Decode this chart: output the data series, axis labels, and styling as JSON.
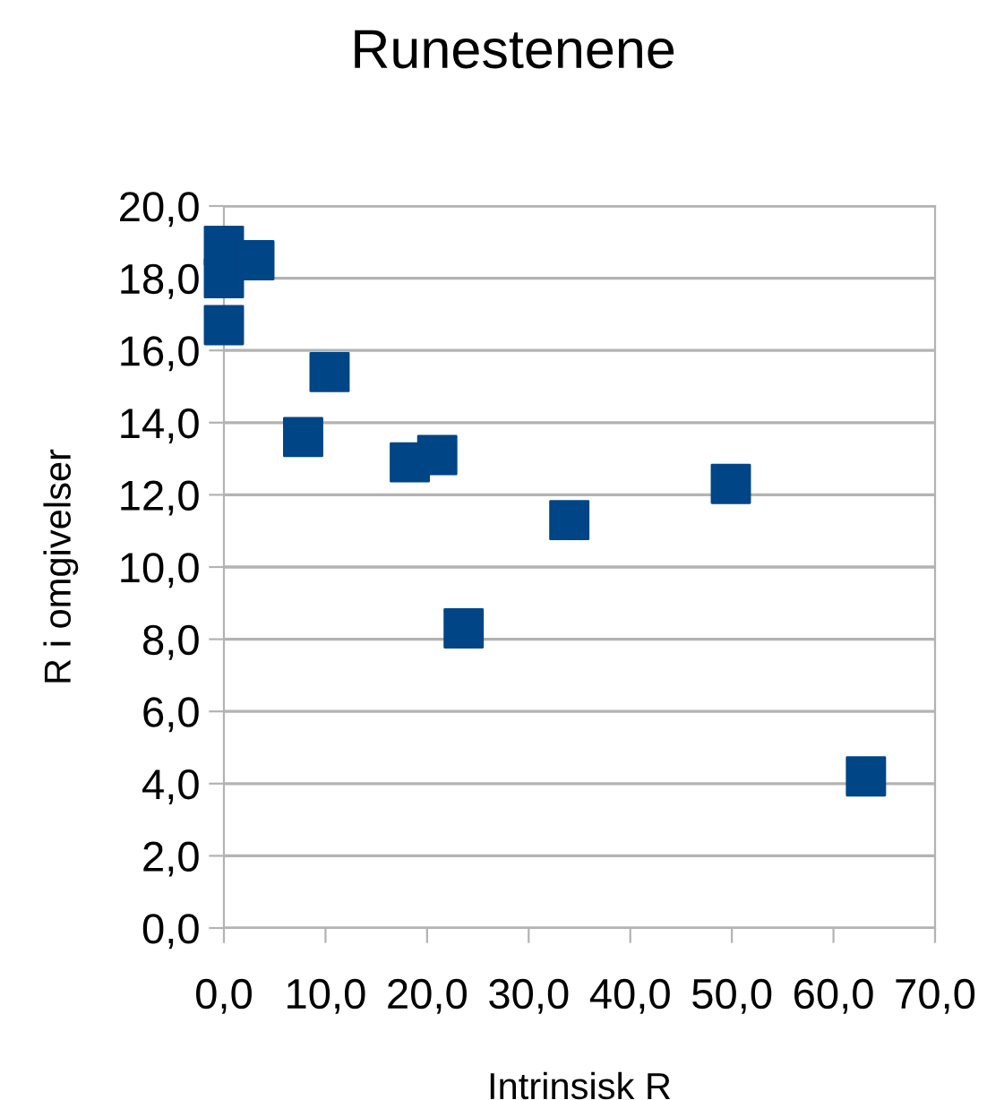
{
  "chart_data": {
    "type": "scatter",
    "title": "Runestenene",
    "xlabel": "Intrinsisk R",
    "ylabel": "R i omgivelser",
    "x": [
      0,
      0,
      3.0,
      0,
      10.4,
      7.8,
      18.3,
      21.0,
      23.6,
      34.0,
      49.9,
      63.2
    ],
    "series": [
      {
        "color": "#004586",
        "values": [
          18.9,
          18.0,
          18.5,
          16.7,
          15.4,
          13.6,
          12.9,
          13.1,
          8.3,
          11.3,
          12.3,
          4.2
        ]
      }
    ],
    "xlim": [
      0,
      70
    ],
    "ylim": [
      0,
      20
    ],
    "xticks": [
      {
        "value": 0,
        "label": "0,0"
      },
      {
        "value": 10,
        "label": "10,0"
      },
      {
        "value": 20,
        "label": "20,0"
      },
      {
        "value": 30,
        "label": "30,0"
      },
      {
        "value": 40,
        "label": "40,0"
      },
      {
        "value": 50,
        "label": "50,0"
      },
      {
        "value": 60,
        "label": "60,0"
      },
      {
        "value": 70,
        "label": "70,0"
      }
    ],
    "yticks": [
      {
        "value": 0,
        "label": "0,0"
      },
      {
        "value": 2,
        "label": "2,0"
      },
      {
        "value": 4,
        "label": "4,0"
      },
      {
        "value": 6,
        "label": "6,0"
      },
      {
        "value": 8,
        "label": "8,0"
      },
      {
        "value": 10,
        "label": "10,0"
      },
      {
        "value": 12,
        "label": "12,0"
      },
      {
        "value": 14,
        "label": "14,0"
      },
      {
        "value": 16,
        "label": "16,0"
      },
      {
        "value": 18,
        "label": "18,0"
      },
      {
        "value": 20,
        "label": "20,0"
      }
    ],
    "grid": "y",
    "marker": "square",
    "legend": false
  }
}
